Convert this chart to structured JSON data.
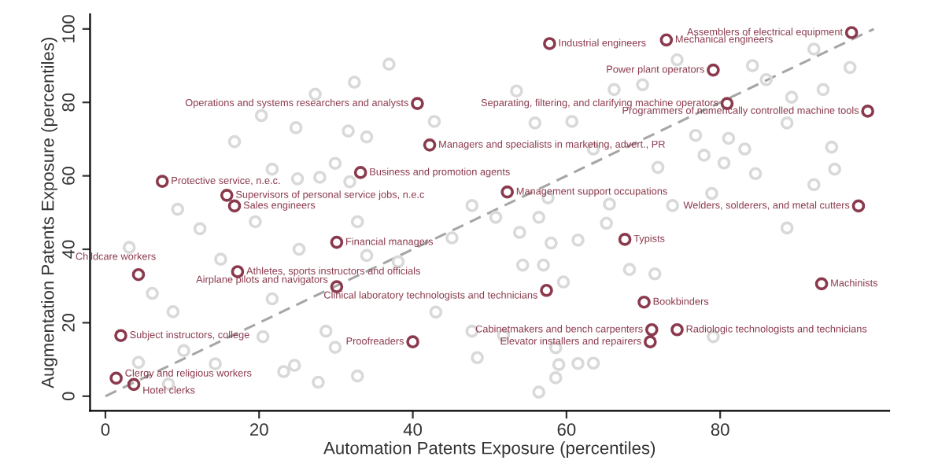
{
  "chart_data": {
    "type": "scatter",
    "xlabel": "Automation Patents Exposure (percentiles)",
    "ylabel": "Augmentation Patents Exposure (percentiles)",
    "xlim": [
      -2,
      102
    ],
    "ylim": [
      -4,
      104
    ],
    "xticks": [
      0,
      20,
      40,
      60,
      80
    ],
    "yticks": [
      0,
      20,
      40,
      60,
      80,
      100
    ],
    "grid": false,
    "marker": "circle",
    "series": [
      {
        "type": "scatter",
        "color": "#d9d9d9",
        "x": [
          36.9,
          32.4,
          27.3,
          20.3,
          24.8,
          31.6,
          34,
          16.8,
          42.8,
          21.7,
          25,
          27.9,
          29.9,
          31.8,
          9.4,
          19.5,
          32.8,
          74.4,
          84.2,
          86,
          92.2,
          96.9,
          89.3,
          93.4,
          53.5,
          66.2,
          69.9,
          55.9,
          60.7,
          76.8,
          81.1,
          88.7,
          94.5,
          63.5,
          83.2,
          71.9,
          77.9,
          80.5,
          84.6,
          94.9,
          47.7,
          57.6,
          65.6,
          78.9,
          92.2,
          73.8,
          3.1,
          6.1,
          8.8,
          12.3,
          15,
          21.7,
          24.6,
          23.2,
          27.7,
          25.2,
          34,
          38.1,
          43,
          45.1,
          4.3,
          8.2,
          14.3,
          28.7,
          29.9,
          32.8,
          10.2,
          20.5,
          50.8,
          56.4,
          53.9,
          58,
          61.5,
          65.2,
          68.2,
          71.5,
          88.7,
          54.3,
          57,
          59.6,
          47.7,
          51.8,
          58.6,
          59,
          61.5,
          63.5,
          58.6,
          56.4,
          79.1,
          48.4
        ],
        "values": [
          90.4,
          85.5,
          82.2,
          76.4,
          73.1,
          72.2,
          70.6,
          69.3,
          74.8,
          61.8,
          59.2,
          59.6,
          63.4,
          58.4,
          50.9,
          47.5,
          47.5,
          91.6,
          90,
          86.2,
          94.5,
          89.5,
          81.4,
          83.5,
          83.1,
          83.5,
          84.8,
          74.4,
          74.8,
          71,
          70.2,
          74.4,
          67.8,
          67.3,
          67.3,
          62.3,
          65.6,
          63.5,
          60.6,
          61.8,
          51.9,
          54,
          52.3,
          55.2,
          57.6,
          51.9,
          40.5,
          28,
          23,
          45.6,
          37.3,
          26.5,
          8.4,
          6.7,
          3.8,
          40,
          38.3,
          36.6,
          22.9,
          43.1,
          9.2,
          3.3,
          8.8,
          17.7,
          13.3,
          5.5,
          12.4,
          16.2,
          48.7,
          48.7,
          44.6,
          41.7,
          42.5,
          47.1,
          34.5,
          33.3,
          45.8,
          35.7,
          35.7,
          31.1,
          17.7,
          16.6,
          13.2,
          8.6,
          8.9,
          9,
          5,
          1.1,
          16.2,
          10.5
        ]
      },
      {
        "color": "#8b3a4e",
        "x": [
          97.1,
          73,
          57.8,
          79.1,
          40.6,
          80.9,
          99.2,
          42.2,
          33.2,
          7.4,
          15.8,
          16.8,
          52.3,
          98,
          30.1,
          67.6,
          4.3,
          17.2,
          30.1,
          57.4,
          70.1,
          93.2,
          71.1,
          70.9,
          74.4,
          40,
          2,
          1.4,
          3.7
        ],
        "values": [
          99,
          97,
          96,
          88.8,
          79.7,
          79.7,
          77.6,
          68.4,
          60.9,
          58.5,
          54.7,
          51.8,
          55.6,
          51.8,
          41.9,
          42.7,
          33.1,
          33.9,
          29.8,
          28.8,
          25.6,
          30.6,
          18.1,
          14.8,
          18.1,
          14.8,
          16.5,
          4.9,
          3.2
        ]
      },
      {
        "type": "line",
        "color": "#a6a6a6",
        "line_style": "dashed",
        "marker": "none",
        "x": [
          0,
          100
        ],
        "values": [
          0,
          100
        ]
      }
    ],
    "annotations": [
      {
        "text": "Assemblers of electrical equipment",
        "x": 97.1,
        "y": 99
      },
      {
        "text": "Mechanical engineers",
        "x": 73,
        "y": 97
      },
      {
        "text": "Industrial engineers",
        "x": 57.8,
        "y": 96
      },
      {
        "text": "Power plant operators",
        "x": 79.1,
        "y": 88.8
      },
      {
        "text": "Operations and systems researchers and analysts",
        "x": 40.6,
        "y": 79.7
      },
      {
        "text": "Separating, filtering, and clarifying machine operators",
        "x": 80.9,
        "y": 79.7
      },
      {
        "text": "Programmers of numerically controlled machine tools",
        "x": 99.2,
        "y": 77.6
      },
      {
        "text": "Managers and specialists in marketing, advert., PR",
        "x": 42.2,
        "y": 68.4
      },
      {
        "text": "Business and promotion agents",
        "x": 33.2,
        "y": 60.9
      },
      {
        "text": "Protective service, n.e.c.",
        "x": 7.4,
        "y": 58.5
      },
      {
        "text": "Supervisors of personal service jobs, n.e.c",
        "x": 15.8,
        "y": 54.7
      },
      {
        "text": "Sales engineers",
        "x": 16.8,
        "y": 51.8
      },
      {
        "text": "Management support occupations",
        "x": 52.3,
        "y": 55.6
      },
      {
        "text": "Welders, solderers, and metal cutters",
        "x": 98,
        "y": 51.8
      },
      {
        "text": "Financial managers",
        "x": 30.1,
        "y": 41.9
      },
      {
        "text": "Typists",
        "x": 67.6,
        "y": 42.7
      },
      {
        "text": "Childcare workers",
        "x": 4.3,
        "y": 33.1
      },
      {
        "text": "Athletes, sports instructors and officials",
        "x": 17.2,
        "y": 33.9
      },
      {
        "text": "Airplane pilots and navigators",
        "x": 30.1,
        "y": 29.8
      },
      {
        "text": "Clinical laboratory technologists and technicians",
        "x": 57.4,
        "y": 28.8
      },
      {
        "text": "Bookbinders",
        "x": 70.1,
        "y": 25.6
      },
      {
        "text": "Machinists",
        "x": 93.2,
        "y": 30.6
      },
      {
        "text": "Cabinetmakers and bench carpenters",
        "x": 71.1,
        "y": 18.1
      },
      {
        "text": "Elevator installers and repairers",
        "x": 70.9,
        "y": 14.8
      },
      {
        "text": "Radiologic technologists and technicians",
        "x": 74.4,
        "y": 18.1
      },
      {
        "text": "Proofreaders",
        "x": 40,
        "y": 14.8
      },
      {
        "text": "Subject instructors, college",
        "x": 2,
        "y": 16.5
      },
      {
        "text": "Clergy and religious workers",
        "x": 1.4,
        "y": 4.9
      },
      {
        "text": "Hotel clerks",
        "x": 3.7,
        "y": 3.2
      }
    ]
  }
}
